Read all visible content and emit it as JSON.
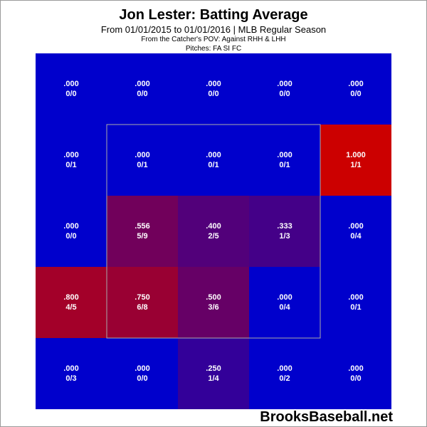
{
  "header": {
    "title": "Jon Lester: Batting Average",
    "subtitle": "From 01/01/2015 to 01/01/2016 | MLB Regular Season",
    "pov_line": "From the Catcher's POV:  Against RHH & LHH",
    "pitches_line": "Pitches:  FA  SI  FC"
  },
  "watermark": "BrooksBaseball.net",
  "colors": {
    "low": "#0000cc",
    "high": "#cc0000",
    "strike_zone_border": "#aaaaaa",
    "cell_text": "#ffffff"
  },
  "chart_data": {
    "type": "heatmap",
    "title": "Jon Lester: Batting Average",
    "rows": 5,
    "cols": 5,
    "strike_zone": {
      "rows": [
        1,
        3
      ],
      "cols": [
        1,
        3
      ]
    },
    "cells": [
      [
        {
          "avg": ".000",
          "frac": "0/0",
          "value": 0.0
        },
        {
          "avg": ".000",
          "frac": "0/0",
          "value": 0.0
        },
        {
          "avg": ".000",
          "frac": "0/0",
          "value": 0.0
        },
        {
          "avg": ".000",
          "frac": "0/0",
          "value": 0.0
        },
        {
          "avg": ".000",
          "frac": "0/0",
          "value": 0.0
        }
      ],
      [
        {
          "avg": ".000",
          "frac": "0/1",
          "value": 0.0
        },
        {
          "avg": ".000",
          "frac": "0/1",
          "value": 0.0
        },
        {
          "avg": ".000",
          "frac": "0/1",
          "value": 0.0
        },
        {
          "avg": ".000",
          "frac": "0/1",
          "value": 0.0
        },
        {
          "avg": "1.000",
          "frac": "1/1",
          "value": 1.0
        }
      ],
      [
        {
          "avg": ".000",
          "frac": "0/0",
          "value": 0.0
        },
        {
          "avg": ".556",
          "frac": "5/9",
          "value": 0.556
        },
        {
          "avg": ".400",
          "frac": "2/5",
          "value": 0.4
        },
        {
          "avg": ".333",
          "frac": "1/3",
          "value": 0.333
        },
        {
          "avg": ".000",
          "frac": "0/4",
          "value": 0.0
        }
      ],
      [
        {
          "avg": ".800",
          "frac": "4/5",
          "value": 0.8
        },
        {
          "avg": ".750",
          "frac": "6/8",
          "value": 0.75
        },
        {
          "avg": ".500",
          "frac": "3/6",
          "value": 0.5
        },
        {
          "avg": ".000",
          "frac": "0/4",
          "value": 0.0
        },
        {
          "avg": ".000",
          "frac": "0/1",
          "value": 0.0
        }
      ],
      [
        {
          "avg": ".000",
          "frac": "0/3",
          "value": 0.0
        },
        {
          "avg": ".000",
          "frac": "0/0",
          "value": 0.0
        },
        {
          "avg": ".250",
          "frac": "1/4",
          "value": 0.25
        },
        {
          "avg": ".000",
          "frac": "0/2",
          "value": 0.0
        },
        {
          "avg": ".000",
          "frac": "0/0",
          "value": 0.0
        }
      ]
    ]
  }
}
